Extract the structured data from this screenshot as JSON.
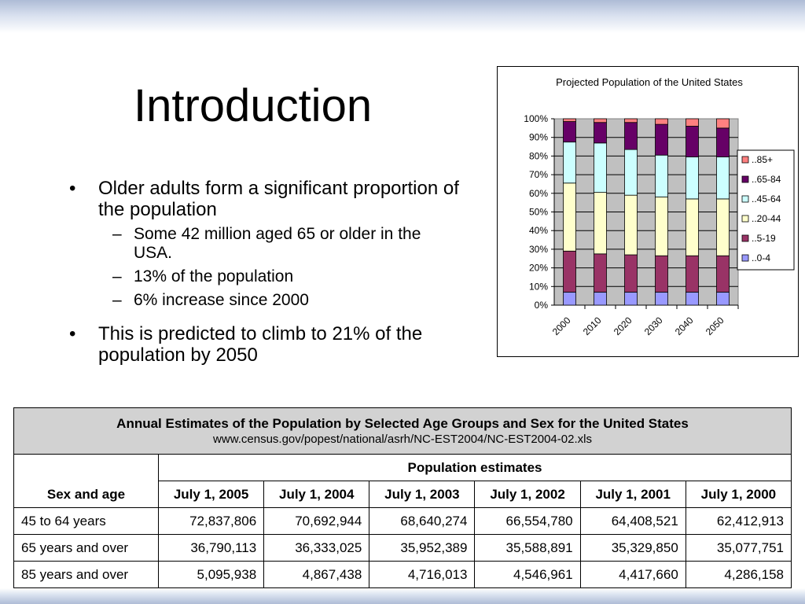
{
  "slide": {
    "title": "Introduction",
    "bullets": [
      {
        "text": "Older adults form a significant proportion of the population",
        "subs": [
          "Some 42 million aged 65 or older in the USA.",
          "13% of the population",
          "6% increase since 2000"
        ]
      },
      {
        "text": "This is predicted to climb to 21% of the population by 2050",
        "subs": []
      }
    ]
  },
  "chart_data": {
    "type": "bar",
    "stacked": "percent",
    "title": "Projected Population of the United States",
    "categories": [
      "2000",
      "2010",
      "2020",
      "2030",
      "2040",
      "2050"
    ],
    "yticks": [
      "0%",
      "10%",
      "20%",
      "30%",
      "40%",
      "50%",
      "60%",
      "70%",
      "80%",
      "90%",
      "100%"
    ],
    "ylim": [
      0,
      100
    ],
    "legend_position": "right",
    "series": [
      {
        "name": "..0-4",
        "color": "#9999ff",
        "values": [
          7,
          7,
          7,
          7,
          7,
          7
        ]
      },
      {
        "name": "..5-19",
        "color": "#993366",
        "values": [
          22,
          20.5,
          20,
          19.5,
          19.5,
          19.5
        ]
      },
      {
        "name": "..20-44",
        "color": "#ffffcc",
        "values": [
          36.5,
          33,
          32,
          31.5,
          30.5,
          30.5
        ]
      },
      {
        "name": "..45-64",
        "color": "#ccffff",
        "values": [
          22,
          26.5,
          24.5,
          22.5,
          22.5,
          22.5
        ]
      },
      {
        "name": "..65-84",
        "color": "#660066",
        "values": [
          11,
          11,
          14.5,
          16.5,
          16.5,
          15.5
        ]
      },
      {
        "name": "..85+",
        "color": "#ff8080",
        "values": [
          1.5,
          2,
          2,
          3,
          4,
          5
        ]
      }
    ]
  },
  "table": {
    "title": "Annual Estimates of the Population by Selected Age Groups and Sex for the United States",
    "url": "www.census.gov/popest/national/asrh/NC-EST2004/NC-EST2004-02.xls",
    "row_header": "Sex and age",
    "group_header": "Population estimates",
    "columns": [
      "July 1, 2005",
      "July 1, 2004",
      "July 1, 2003",
      "July 1, 2002",
      "July 1, 2001",
      "July 1, 2000"
    ],
    "rows": [
      {
        "label": "45 to 64 years",
        "values": [
          "72,837,806",
          "70,692,944",
          "68,640,274",
          "66,554,780",
          "64,408,521",
          "62,412,913"
        ]
      },
      {
        "label": "65 years and over",
        "values": [
          "36,790,113",
          "36,333,025",
          "35,952,389",
          "35,588,891",
          "35,329,850",
          "35,077,751"
        ]
      },
      {
        "label": "85 years and over",
        "values": [
          "5,095,938",
          "4,867,438",
          "4,716,013",
          "4,546,961",
          "4,417,660",
          "4,286,158"
        ]
      }
    ]
  }
}
